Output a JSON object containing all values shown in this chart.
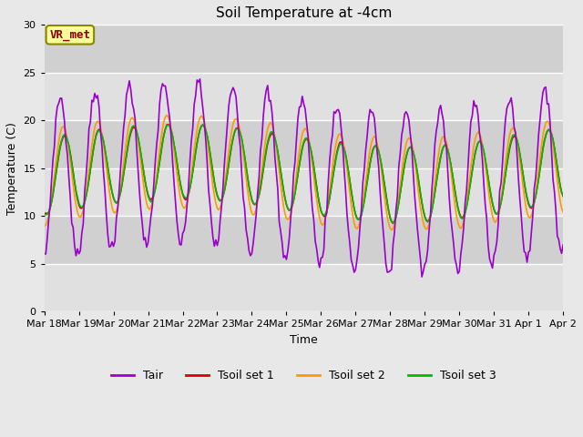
{
  "title": "Soil Temperature at -4cm",
  "xlabel": "Time",
  "ylabel": "Temperature (C)",
  "ylim": [
    0,
    30
  ],
  "xtick_labels": [
    "Mar 18",
    "Mar 19",
    "Mar 20",
    "Mar 21",
    "Mar 22",
    "Mar 23",
    "Mar 24",
    "Mar 25",
    "Mar 26",
    "Mar 27",
    "Mar 28",
    "Mar 29",
    "Mar 30",
    "Mar 31",
    "Apr 1",
    "Apr 2"
  ],
  "ytick_labels": [
    0,
    5,
    10,
    15,
    20,
    25,
    30
  ],
  "legend_labels": [
    "Tair",
    "Tsoil set 1",
    "Tsoil set 2",
    "Tsoil set 3"
  ],
  "legend_colors": [
    "#9900cc",
    "#dd0000",
    "#ff9900",
    "#00bb00"
  ],
  "annotation_text": "VR_met",
  "annotation_color": "#880000",
  "annotation_bg": "#ffff99",
  "fig_facecolor": "#e8e8e8",
  "ax_facecolor": "#e8e8e8",
  "band_colors": [
    "#e0e0e0",
    "#d0d0d0"
  ],
  "title_fontsize": 11,
  "axis_fontsize": 9,
  "tick_fontsize": 8,
  "legend_fontsize": 9
}
